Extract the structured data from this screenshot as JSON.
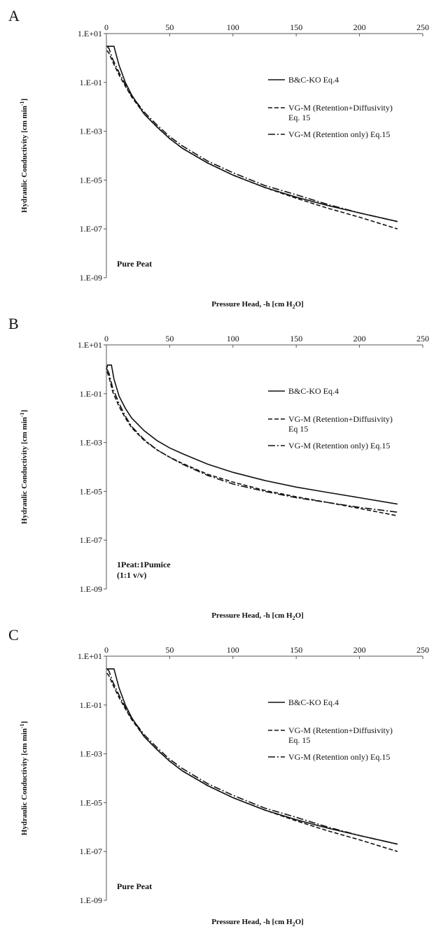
{
  "chart_data": [
    {
      "type": "line",
      "panel_label": "A",
      "xlabel_main": "Pressure Head, -h [cm H",
      "xlabel_sub": "2",
      "xlabel_end": "O]",
      "ylabel_main": "Hydraulic Conductivity [cm min",
      "ylabel_sup": "-1",
      "ylabel_end": "]",
      "annotation": [
        "Pure Peat"
      ],
      "xlim": [
        0,
        250
      ],
      "ylim": [
        1e-09,
        10
      ],
      "yscale": "log",
      "x_ticks": [
        "0",
        "50",
        "100",
        "150",
        "200",
        "250"
      ],
      "y_ticks": [
        "1.E+01",
        "1.E-01",
        "1.E-03",
        "1.E-05",
        "1.E-07",
        "1.E-09"
      ],
      "legend_position": "right",
      "series": [
        {
          "name": "B&C-KO Eq.4",
          "style": "solid",
          "x": [
            0,
            6,
            10,
            15,
            20,
            30,
            40,
            50,
            60,
            80,
            100,
            125,
            150,
            175,
            200,
            230
          ],
          "y": [
            3,
            3,
            0.5,
            0.1,
            0.03,
            0.005,
            0.0015,
            0.0005,
            0.0002,
            5e-05,
            1.6e-05,
            5e-06,
            2e-06,
            9e-07,
            4.5e-07,
            2e-07
          ]
        },
        {
          "name": "VG-M (Retention+Diffusivity)\nEq. 15",
          "legend_lines": [
            "VG-M (Retention+Diffusivity)",
            "Eq. 15"
          ],
          "style": "dashed",
          "x": [
            0.5,
            2,
            5,
            10,
            15,
            20,
            30,
            40,
            50,
            60,
            80,
            100,
            125,
            150,
            175,
            200,
            230
          ],
          "y": [
            2,
            1.6,
            0.7,
            0.2,
            0.07,
            0.025,
            0.005,
            0.0015,
            0.0005,
            0.0002,
            5e-05,
            1.6e-05,
            5e-06,
            1.8e-06,
            7e-07,
            3e-07,
            1e-07
          ]
        },
        {
          "name": "VG-M (Retention only) Eq.15",
          "style": "dashdot",
          "x": [
            0.5,
            2,
            5,
            10,
            15,
            20,
            30,
            40,
            50,
            60,
            80,
            100,
            125,
            150,
            175,
            200,
            230
          ],
          "y": [
            3,
            2.5,
            0.9,
            0.25,
            0.08,
            0.028,
            0.006,
            0.0018,
            0.0006,
            0.00025,
            6e-05,
            2e-05,
            6e-06,
            2.5e-06,
            1e-06,
            4.5e-07,
            2e-07
          ]
        }
      ]
    },
    {
      "type": "line",
      "panel_label": "B",
      "xlabel_main": "Pressure Head, -h [cm H",
      "xlabel_sub": "2",
      "xlabel_end": "O]",
      "ylabel_main": "Hydraulic Conductivity [cm min",
      "ylabel_sup": "-1",
      "ylabel_end": "]",
      "annotation": [
        "1Peat:1Pumice",
        "(1:1 v/v)"
      ],
      "xlim": [
        0,
        250
      ],
      "ylim": [
        1e-09,
        10
      ],
      "yscale": "log",
      "x_ticks": [
        "0",
        "50",
        "100",
        "150",
        "200",
        "250"
      ],
      "y_ticks": [
        "1.E+01",
        "1.E-01",
        "1.E-03",
        "1.E-05",
        "1.E-07",
        "1.E-09"
      ],
      "legend_position": "right",
      "series": [
        {
          "name": "B&C-KO Eq.4",
          "style": "solid",
          "x": [
            0,
            1,
            4,
            6,
            10,
            15,
            20,
            30,
            40,
            50,
            60,
            80,
            100,
            125,
            150,
            175,
            200,
            230
          ],
          "y": [
            1,
            1.5,
            1.5,
            0.4,
            0.08,
            0.025,
            0.01,
            0.003,
            0.0012,
            0.0006,
            0.00035,
            0.00013,
            6e-05,
            2.8e-05,
            1.5e-05,
            9e-06,
            5.5e-06,
            3e-06
          ]
        },
        {
          "name": "VG-M (Retention+Diffusivity)\nEq 15",
          "legend_lines": [
            "VG-M (Retention+Diffusivity)",
            "Eq 15"
          ],
          "style": "dashed",
          "x": [
            0.5,
            2,
            5,
            10,
            15,
            20,
            30,
            40,
            50,
            60,
            80,
            100,
            125,
            150,
            175,
            200,
            230
          ],
          "y": [
            0.8,
            0.5,
            0.12,
            0.03,
            0.01,
            0.004,
            0.0012,
            0.0005,
            0.00025,
            0.00014,
            5e-05,
            2.4e-05,
            1.1e-05,
            6e-06,
            3.5e-06,
            2e-06,
            1e-06
          ]
        },
        {
          "name": "VG-M (Retention only) Eq.15",
          "style": "dashdot",
          "x": [
            0.5,
            2,
            5,
            10,
            15,
            20,
            30,
            40,
            50,
            60,
            80,
            100,
            125,
            150,
            175,
            200,
            230
          ],
          "y": [
            1,
            0.7,
            0.17,
            0.04,
            0.012,
            0.0045,
            0.0013,
            0.0005,
            0.00025,
            0.00013,
            4.5e-05,
            2e-05,
            1e-05,
            5.5e-06,
            3.5e-06,
            2.2e-06,
            1.4e-06
          ]
        }
      ]
    },
    {
      "type": "line",
      "panel_label": "C",
      "xlabel_main": "Pressure Head, -h [cm H",
      "xlabel_sub": "2",
      "xlabel_end": "O]",
      "ylabel_main": "Hydraulic Conductivity [cm min",
      "ylabel_sup": "-1",
      "ylabel_end": "]",
      "annotation": [
        "Pure Peat"
      ],
      "xlim": [
        0,
        250
      ],
      "ylim": [
        1e-09,
        10
      ],
      "yscale": "log",
      "x_ticks": [
        "0",
        "50",
        "100",
        "150",
        "200",
        "250"
      ],
      "y_ticks": [
        "1.E+01",
        "1.E-01",
        "1.E-03",
        "1.E-05",
        "1.E-07",
        "1.E-09"
      ],
      "legend_position": "right",
      "series": [
        {
          "name": "B&C-KO Eq.4",
          "style": "solid",
          "x": [
            0,
            6,
            10,
            15,
            20,
            30,
            40,
            50,
            60,
            80,
            100,
            125,
            150,
            175,
            200,
            230
          ],
          "y": [
            3,
            3,
            0.5,
            0.1,
            0.03,
            0.005,
            0.0015,
            0.0005,
            0.0002,
            5e-05,
            1.6e-05,
            5e-06,
            2e-06,
            9e-07,
            4.5e-07,
            2e-07
          ]
        },
        {
          "name": "VG-M (Retention+Diffusivity)\nEq. 15",
          "legend_lines": [
            "VG-M (Retention+Diffusivity)",
            "Eq. 15"
          ],
          "style": "dashed",
          "x": [
            0.5,
            2,
            5,
            10,
            15,
            20,
            30,
            40,
            50,
            60,
            80,
            100,
            125,
            150,
            175,
            200,
            230
          ],
          "y": [
            2,
            1.6,
            0.7,
            0.2,
            0.07,
            0.025,
            0.005,
            0.0015,
            0.0005,
            0.0002,
            5e-05,
            1.6e-05,
            5e-06,
            1.8e-06,
            7e-07,
            3e-07,
            1e-07
          ]
        },
        {
          "name": "VG-M (Retention only) Eq.15",
          "style": "dashdot",
          "x": [
            0.5,
            2,
            5,
            10,
            15,
            20,
            30,
            40,
            50,
            60,
            80,
            100,
            125,
            150,
            175,
            200,
            230
          ],
          "y": [
            3,
            2.5,
            0.9,
            0.25,
            0.08,
            0.028,
            0.006,
            0.0018,
            0.0006,
            0.00025,
            6e-05,
            2e-05,
            6e-06,
            2.5e-06,
            1e-06,
            4.5e-07,
            2e-07
          ]
        }
      ]
    }
  ]
}
